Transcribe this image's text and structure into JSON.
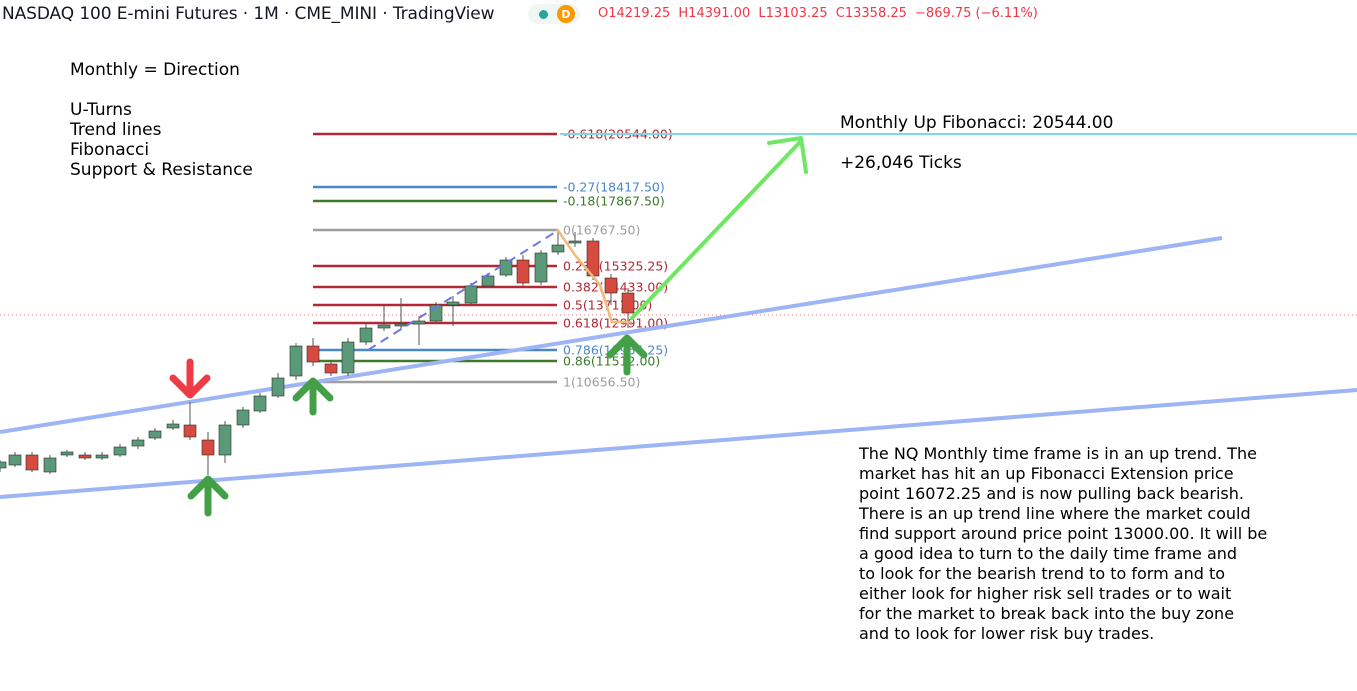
{
  "header": {
    "title": "NASDAQ 100 E-mini Futures · 1M · CME_MINI · TradingView",
    "badge_letter": "D",
    "ohlc": {
      "open": "O14219.25",
      "high": "H14391.00",
      "low": "L13103.25",
      "close": "C13358.25",
      "change": "−869.75 (−6.11%)"
    }
  },
  "notes": {
    "direction": "Monthly = Direction",
    "list": [
      "U-Turns",
      "Trend lines",
      "Fibonacci",
      "Support & Resistance"
    ],
    "target": "Monthly Up Fibonacci: 20544.00",
    "ticks": "+26,046 Ticks",
    "description": "The NQ Monthly time frame is in an up trend. The\nmarket has hit an up Fibonacci Extension price\npoint 16072.25 and is now pulling back bearish.\nThere is an up trend line where the market could\nfind support around price point 13000.00. It will be\na good idea to turn to the daily time frame and\nto look for the bearish trend to to form and to\neither look for higher risk sell trades or to wait\nfor the market to break back into the buy zone\nand to look for lower risk buy trades."
  },
  "fib_levels": [
    {
      "label": "-0.618(20544.00)",
      "price": 20544.0,
      "color": "#b22833"
    },
    {
      "label": "-0.27(18417.50)",
      "price": 18417.5,
      "color": "#4a87c8"
    },
    {
      "label": "-0.18(17867.50)",
      "price": 17867.5,
      "color": "#3f7a2b"
    },
    {
      "label": "0(16767.50)",
      "price": 16767.5,
      "color": "#9e9e9e"
    },
    {
      "label": "0.236(15325.25)",
      "price": 15325.25,
      "color": "#b22833"
    },
    {
      "label": "0.382(14433.00)",
      "price": 14433.0,
      "color": "#b22833"
    },
    {
      "label": "0.5(13711.00)",
      "price": 13711.0,
      "color": "#b22833"
    },
    {
      "label": "0.618(12991.00)",
      "price": 12991.0,
      "color": "#b22833"
    },
    {
      "label": "0.786(11964.25)",
      "price": 11964.25,
      "color": "#4a87c8"
    },
    {
      "label": "0.86(11512.00)",
      "price": 11512.0,
      "color": "#3f7a2b"
    },
    {
      "label": "1(10656.50)",
      "price": 10656.5,
      "color": "#9e9e9e"
    }
  ],
  "colors": {
    "up_candle": "#5b9a78",
    "down_candle": "#d64a3f",
    "trendline": "#9db4f5",
    "target_line": "#7fd6e6",
    "projection_arrow": "#6ee860",
    "support_arrow": "#43a047",
    "resistance_arrow": "#ef3b46",
    "pivot_dash": "#6b79e8",
    "retrace_line": "#f5b877"
  },
  "icons": [
    "up-arrow-icon",
    "down-arrow-icon",
    "projection-arrow-icon",
    "live-dot-icon"
  ]
}
